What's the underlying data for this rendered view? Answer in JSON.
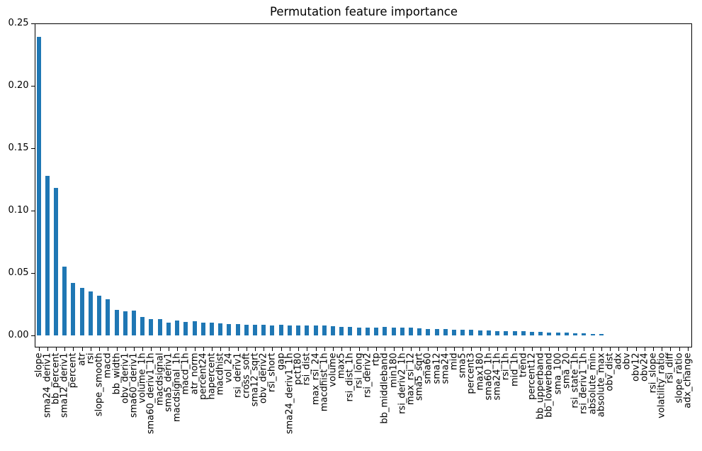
{
  "chart_data": {
    "type": "bar",
    "title": "Permutation feature importance",
    "xlabel": "",
    "ylabel": "",
    "bar_color": "#1f77b4",
    "grid": false,
    "legend": null,
    "ylim": [
      -0.01,
      0.25
    ],
    "ytick_labels": [
      "0.00",
      "0.05",
      "0.10",
      "0.15",
      "0.20",
      "0.25"
    ],
    "yticks": [
      0.0,
      0.05,
      0.1,
      0.15,
      0.2,
      0.25
    ],
    "categories": [
      "slope",
      "sma24_deriv1",
      "bb_percent",
      "sma12_deriv1",
      "percent",
      "atr",
      "rsi",
      "slope_smooth",
      "macd",
      "bb_width",
      "obv_deriv1",
      "sma60_deriv1",
      "volume_1h",
      "sma60_deriv1_1h",
      "macdsignal",
      "sma5_deriv1",
      "macdsignal_1h",
      "macd_1h",
      "atr_norm",
      "percent24",
      "hapercent",
      "macdhist",
      "vol_24",
      "rsi_deriv1",
      "cross_soft",
      "sma12_sqrt",
      "obv_deriv2",
      "rsi_short",
      "gap",
      "sma24_deriv1_1h",
      "pct180",
      "rsi_dist",
      "max_rsi_24",
      "macdhist_1h",
      "volume",
      "max5",
      "rsi_dist_1h",
      "rsi_long",
      "rsi_deriv2",
      "rtp",
      "bb_middleband",
      "min180",
      "rsi_deriv2_1h",
      "max_rsi_12",
      "sma5_sqrt",
      "sma60",
      "sma12",
      "sma24",
      "mid",
      "sma5",
      "percent3",
      "max180",
      "sma60_1h",
      "sma24_1h",
      "rsi_1h",
      "mid_1h",
      "trend",
      "percent12",
      "bb_upperband",
      "bb_lowerband",
      "sma_100",
      "sma_20",
      "rsi_state_1h",
      "rsi_deriv1_1h",
      "absolute_min",
      "absolute_max",
      "obv_dist",
      "adx",
      "obv",
      "obv12",
      "obv24",
      "rsi_slope",
      "volatility_ratio",
      "rsi_diff",
      "slope_ratio",
      "adx_change"
    ],
    "values": [
      0.239,
      0.128,
      0.118,
      0.055,
      0.042,
      0.038,
      0.0352,
      0.032,
      0.029,
      0.0203,
      0.0191,
      0.0197,
      0.0146,
      0.0128,
      0.0132,
      0.0105,
      0.0122,
      0.011,
      0.0114,
      0.0102,
      0.01,
      0.0095,
      0.009,
      0.0089,
      0.0084,
      0.0083,
      0.0083,
      0.008,
      0.0084,
      0.0082,
      0.008,
      0.0082,
      0.0079,
      0.0078,
      0.0074,
      0.0068,
      0.0066,
      0.0064,
      0.0065,
      0.0061,
      0.0066,
      0.0064,
      0.006,
      0.0062,
      0.0055,
      0.0052,
      0.0052,
      0.005,
      0.0048,
      0.0045,
      0.0043,
      0.004,
      0.0037,
      0.0036,
      0.0036,
      0.0033,
      0.0032,
      0.0029,
      0.0028,
      0.0025,
      0.0024,
      0.0021,
      0.0018,
      0.0017,
      0.0013,
      0.0011,
      0.0,
      0.0,
      0.0,
      0.0,
      0.0,
      0.0,
      0.0,
      0.0,
      0.0,
      0.0
    ]
  }
}
